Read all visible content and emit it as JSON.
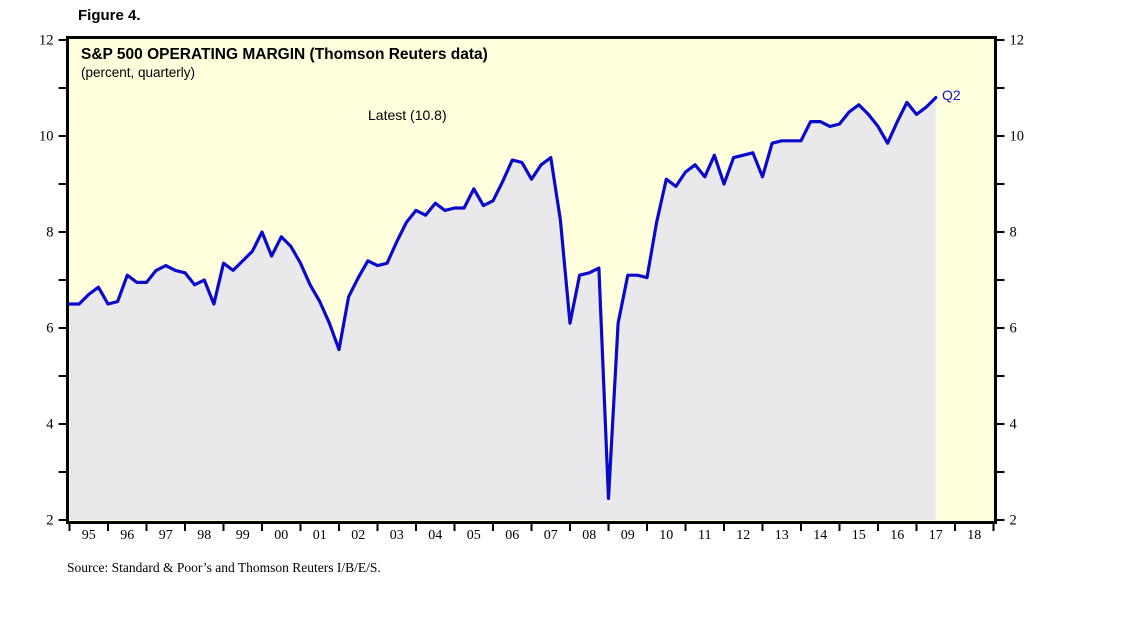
{
  "figure_label": "Figure 4.",
  "title": "S&P 500 OPERATING MARGIN (Thomson Reuters data)",
  "subtitle": "(percent, quarterly)",
  "annotation": "Latest (10.8)",
  "end_label": "Q2",
  "source": "Source: Standard & Poor’s and Thomson Reuters I/B/E/S.",
  "colors": {
    "plot_background": "#FFFFDE",
    "area_fill": "#E9E9EC",
    "line": "#0A0ACD",
    "end_label_blue": "#1414CC",
    "axis": "#000000"
  },
  "chart_data": {
    "type": "area",
    "series_name": "S&P 500 operating margin (percent)",
    "frequency": "quarterly",
    "start": "1995Q1",
    "end": "2017Q2",
    "latest_value": 10.8,
    "values": [
      6.5,
      6.7,
      6.85,
      6.5,
      6.55,
      7.1,
      6.95,
      6.95,
      7.2,
      7.3,
      7.2,
      7.15,
      6.9,
      7.0,
      6.5,
      7.35,
      7.2,
      7.4,
      7.6,
      8.0,
      7.5,
      7.9,
      7.7,
      7.35,
      6.9,
      6.55,
      6.1,
      5.55,
      6.65,
      7.05,
      7.4,
      7.3,
      7.35,
      7.8,
      8.2,
      8.45,
      8.35,
      8.6,
      8.45,
      8.5,
      8.5,
      8.9,
      8.55,
      8.65,
      9.05,
      9.5,
      9.45,
      9.1,
      9.4,
      9.55,
      8.25,
      6.1,
      7.1,
      7.15,
      7.25,
      2.45,
      6.1,
      7.1,
      7.1,
      7.05,
      8.2,
      9.1,
      8.95,
      9.25,
      9.4,
      9.15,
      9.6,
      9.0,
      9.55,
      9.6,
      9.65,
      9.15,
      9.85,
      9.9,
      9.9,
      9.9,
      10.3,
      10.3,
      10.2,
      10.25,
      10.5,
      10.65,
      10.45,
      10.2,
      9.85,
      10.3,
      10.7,
      10.45,
      10.6,
      10.8
    ],
    "x_tick_labels": [
      "95",
      "96",
      "97",
      "98",
      "99",
      "00",
      "01",
      "02",
      "03",
      "04",
      "05",
      "06",
      "07",
      "08",
      "09",
      "10",
      "11",
      "12",
      "13",
      "14",
      "15",
      "16",
      "17",
      "18"
    ],
    "x_range_years": [
      1995,
      2019
    ],
    "ylim": [
      2,
      12
    ],
    "y_major_ticks": [
      2,
      4,
      6,
      8,
      10,
      12
    ],
    "y_minor_step": 1,
    "grid": false,
    "legend_position": "none"
  }
}
